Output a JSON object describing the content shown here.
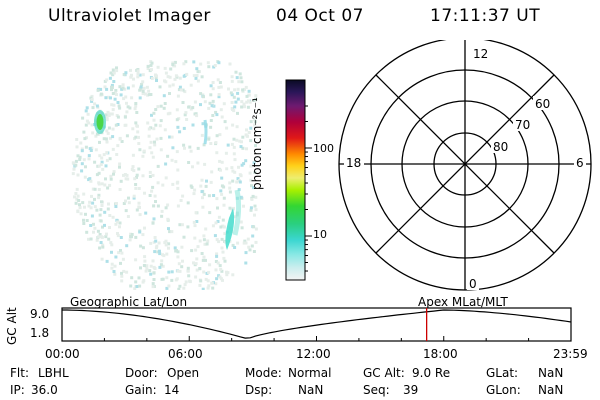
{
  "header": {
    "instrument": "Ultraviolet Imager",
    "date": "04 Oct 07",
    "time": "17:11:37 UT"
  },
  "colorbar": {
    "label": "photon cm⁻²s⁻¹",
    "ticks": [
      {
        "label": "100",
        "value": 100
      },
      {
        "label": "10",
        "value": 10
      }
    ]
  },
  "polar_plot": {
    "mlt_labels": [
      "12",
      "6",
      "0",
      "18"
    ],
    "lat_labels": [
      "60",
      "70",
      "80"
    ]
  },
  "alt_plot": {
    "ylabel": "GC Alt",
    "y_ticks": [
      "9.0",
      "1.8"
    ],
    "left_caption": "Geographic Lat/Lon",
    "right_caption": "Apex MLat/MLT",
    "x_ticks": [
      "00:00",
      "06:00",
      "12:00",
      "18:00",
      "23:59"
    ],
    "current_time_marker_fraction": 0.7164
  },
  "status": {
    "flt_label": "Flt:",
    "flt_value": "LBHL",
    "ip_label": "IP:",
    "ip_value": "36.0",
    "door_label": "Door:",
    "door_value": "Open",
    "gain_label": "Gain:",
    "gain_value": "14",
    "mode_label": "Mode:",
    "mode_value": "Normal",
    "dsp_label": "Dsp:",
    "dsp_value": "NaN",
    "gcalt_label": "GC Alt:",
    "gcalt_value": "9.0 Re",
    "seq_label": "Seq:",
    "seq_value": "39",
    "glat_label": "GLat:",
    "glat_value": "NaN",
    "glon_label": "GLon:",
    "glon_value": "NaN"
  },
  "colors": {
    "marker": "#cc0000"
  }
}
